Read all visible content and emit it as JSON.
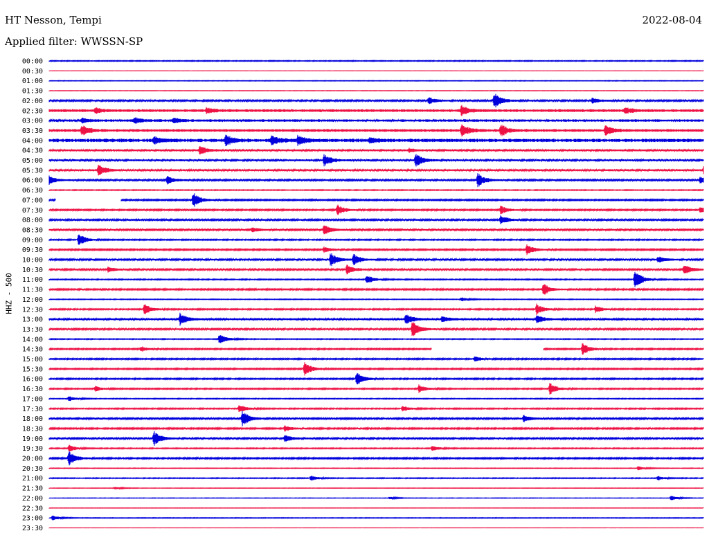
{
  "header": {
    "station": "HT Nesson, Tempi",
    "date": "2022-08-04",
    "filter_label": "Applied filter: WWSSN-SP"
  },
  "chart_data": {
    "type": "line",
    "title": "HT Nesson, Tempi",
    "subtitle": "Applied filter: WWSSN-SP",
    "ylabel": "HHZ - 500",
    "colors": [
      "#0000dd",
      "#ee1144"
    ],
    "row_labels": [
      "00:00",
      "00:30",
      "01:00",
      "01:30",
      "02:00",
      "02:30",
      "03:00",
      "03:30",
      "04:00",
      "04:30",
      "05:00",
      "05:30",
      "06:00",
      "06:30",
      "07:00",
      "07:30",
      "08:00",
      "08:30",
      "09:00",
      "09:30",
      "10:00",
      "10:30",
      "11:00",
      "11:30",
      "12:00",
      "12:30",
      "13:00",
      "13:30",
      "14:00",
      "14:30",
      "15:00",
      "15:30",
      "16:00",
      "16:30",
      "17:00",
      "17:30",
      "18:00",
      "18:30",
      "19:00",
      "19:30",
      "20:00",
      "20:30",
      "21:00",
      "21:30",
      "22:00",
      "22:30",
      "23:00",
      "23:30"
    ],
    "row_noise": [
      0.6,
      0.2,
      0.4,
      0.3,
      1.2,
      2.0,
      1.8,
      2.0,
      2.4,
      1.4,
      1.4,
      1.4,
      1.2,
      0.6,
      1.0,
      1.0,
      1.2,
      1.2,
      0.8,
      1.0,
      1.2,
      1.2,
      0.7,
      1.0,
      0.5,
      0.9,
      1.4,
      1.2,
      0.6,
      0.9,
      0.9,
      0.9,
      0.9,
      0.8,
      0.6,
      0.8,
      1.2,
      1.0,
      1.2,
      0.7,
      1.0,
      0.4,
      0.6,
      0.3,
      0.3,
      0.3,
      0.4,
      0.2
    ],
    "gaps": [
      {
        "row": 14,
        "x_start": 0.01,
        "x_end": 0.11
      },
      {
        "row": 29,
        "x_start": 0.585,
        "x_end": 0.755
      }
    ],
    "events": [
      {
        "row": 4,
        "x": 0.68,
        "amp": 12
      },
      {
        "row": 4,
        "x": 0.58,
        "amp": 5
      },
      {
        "row": 4,
        "x": 0.83,
        "amp": 4
      },
      {
        "row": 5,
        "x": 0.07,
        "amp": 4
      },
      {
        "row": 5,
        "x": 0.24,
        "amp": 4
      },
      {
        "row": 5,
        "x": 0.63,
        "amp": 8
      },
      {
        "row": 5,
        "x": 0.88,
        "amp": 4
      },
      {
        "row": 6,
        "x": 0.05,
        "amp": 3
      },
      {
        "row": 6,
        "x": 0.13,
        "amp": 4
      },
      {
        "row": 6,
        "x": 0.19,
        "amp": 4
      },
      {
        "row": 7,
        "x": 0.05,
        "amp": 8
      },
      {
        "row": 7,
        "x": 0.63,
        "amp": 9
      },
      {
        "row": 7,
        "x": 0.69,
        "amp": 9
      },
      {
        "row": 7,
        "x": 0.85,
        "amp": 7
      },
      {
        "row": 8,
        "x": 0.16,
        "amp": 6
      },
      {
        "row": 8,
        "x": 0.27,
        "amp": 8
      },
      {
        "row": 8,
        "x": 0.34,
        "amp": 7
      },
      {
        "row": 8,
        "x": 0.38,
        "amp": 7
      },
      {
        "row": 8,
        "x": 0.49,
        "amp": 4
      },
      {
        "row": 9,
        "x": 0.23,
        "amp": 7
      },
      {
        "row": 9,
        "x": 0.55,
        "amp": 3
      },
      {
        "row": 10,
        "x": 0.42,
        "amp": 9
      },
      {
        "row": 10,
        "x": 0.56,
        "amp": 10
      },
      {
        "row": 11,
        "x": 0.075,
        "amp": 9
      },
      {
        "row": 11,
        "x": 1.0,
        "amp": 5
      },
      {
        "row": 12,
        "x": 0.0,
        "amp": 6
      },
      {
        "row": 12,
        "x": 0.18,
        "amp": 6
      },
      {
        "row": 12,
        "x": 0.655,
        "amp": 10
      },
      {
        "row": 12,
        "x": 0.995,
        "amp": 5
      },
      {
        "row": 14,
        "x": 0.22,
        "amp": 12
      },
      {
        "row": 15,
        "x": 0.44,
        "amp": 8
      },
      {
        "row": 15,
        "x": 0.69,
        "amp": 6
      },
      {
        "row": 15,
        "x": 0.995,
        "amp": 4
      },
      {
        "row": 16,
        "x": 0.69,
        "amp": 7
      },
      {
        "row": 17,
        "x": 0.42,
        "amp": 8
      },
      {
        "row": 17,
        "x": 0.31,
        "amp": 4
      },
      {
        "row": 18,
        "x": 0.045,
        "amp": 9
      },
      {
        "row": 19,
        "x": 0.73,
        "amp": 9
      },
      {
        "row": 19,
        "x": 0.42,
        "amp": 4
      },
      {
        "row": 20,
        "x": 0.43,
        "amp": 10
      },
      {
        "row": 20,
        "x": 0.465,
        "amp": 8
      },
      {
        "row": 20,
        "x": 0.93,
        "amp": 5
      },
      {
        "row": 21,
        "x": 0.455,
        "amp": 7
      },
      {
        "row": 21,
        "x": 0.97,
        "amp": 8
      },
      {
        "row": 21,
        "x": 0.09,
        "amp": 4
      },
      {
        "row": 22,
        "x": 0.485,
        "amp": 7
      },
      {
        "row": 22,
        "x": 0.895,
        "amp": 16
      },
      {
        "row": 23,
        "x": 0.755,
        "amp": 9
      },
      {
        "row": 24,
        "x": 0.63,
        "amp": 3
      },
      {
        "row": 25,
        "x": 0.145,
        "amp": 8
      },
      {
        "row": 25,
        "x": 0.745,
        "amp": 8
      },
      {
        "row": 25,
        "x": 0.835,
        "amp": 5
      },
      {
        "row": 26,
        "x": 0.2,
        "amp": 9
      },
      {
        "row": 26,
        "x": 0.545,
        "amp": 8
      },
      {
        "row": 26,
        "x": 0.6,
        "amp": 5
      },
      {
        "row": 26,
        "x": 0.745,
        "amp": 6
      },
      {
        "row": 27,
        "x": 0.555,
        "amp": 12
      },
      {
        "row": 28,
        "x": 0.26,
        "amp": 8
      },
      {
        "row": 29,
        "x": 0.815,
        "amp": 9
      },
      {
        "row": 29,
        "x": 0.14,
        "amp": 4
      },
      {
        "row": 30,
        "x": 0.65,
        "amp": 4
      },
      {
        "row": 31,
        "x": 0.39,
        "amp": 11
      },
      {
        "row": 32,
        "x": 0.47,
        "amp": 10
      },
      {
        "row": 33,
        "x": 0.565,
        "amp": 6
      },
      {
        "row": 33,
        "x": 0.765,
        "amp": 9
      },
      {
        "row": 33,
        "x": 0.07,
        "amp": 4
      },
      {
        "row": 34,
        "x": 0.03,
        "amp": 4
      },
      {
        "row": 35,
        "x": 0.29,
        "amp": 6
      },
      {
        "row": 35,
        "x": 0.54,
        "amp": 4
      },
      {
        "row": 36,
        "x": 0.295,
        "amp": 12
      },
      {
        "row": 36,
        "x": 0.725,
        "amp": 5
      },
      {
        "row": 37,
        "x": 0.36,
        "amp": 5
      },
      {
        "row": 38,
        "x": 0.16,
        "amp": 11
      },
      {
        "row": 38,
        "x": 0.36,
        "amp": 5
      },
      {
        "row": 39,
        "x": 0.03,
        "amp": 5
      },
      {
        "row": 39,
        "x": 0.585,
        "amp": 4
      },
      {
        "row": 40,
        "x": 0.03,
        "amp": 11
      },
      {
        "row": 41,
        "x": 0.9,
        "amp": 3
      },
      {
        "row": 42,
        "x": 0.4,
        "amp": 4
      },
      {
        "row": 42,
        "x": 0.93,
        "amp": 3
      },
      {
        "row": 43,
        "x": 0.1,
        "amp": 2
      },
      {
        "row": 44,
        "x": 0.95,
        "amp": 4
      },
      {
        "row": 44,
        "x": 0.52,
        "amp": 2
      },
      {
        "row": 46,
        "x": 0.005,
        "amp": 4
      }
    ]
  }
}
